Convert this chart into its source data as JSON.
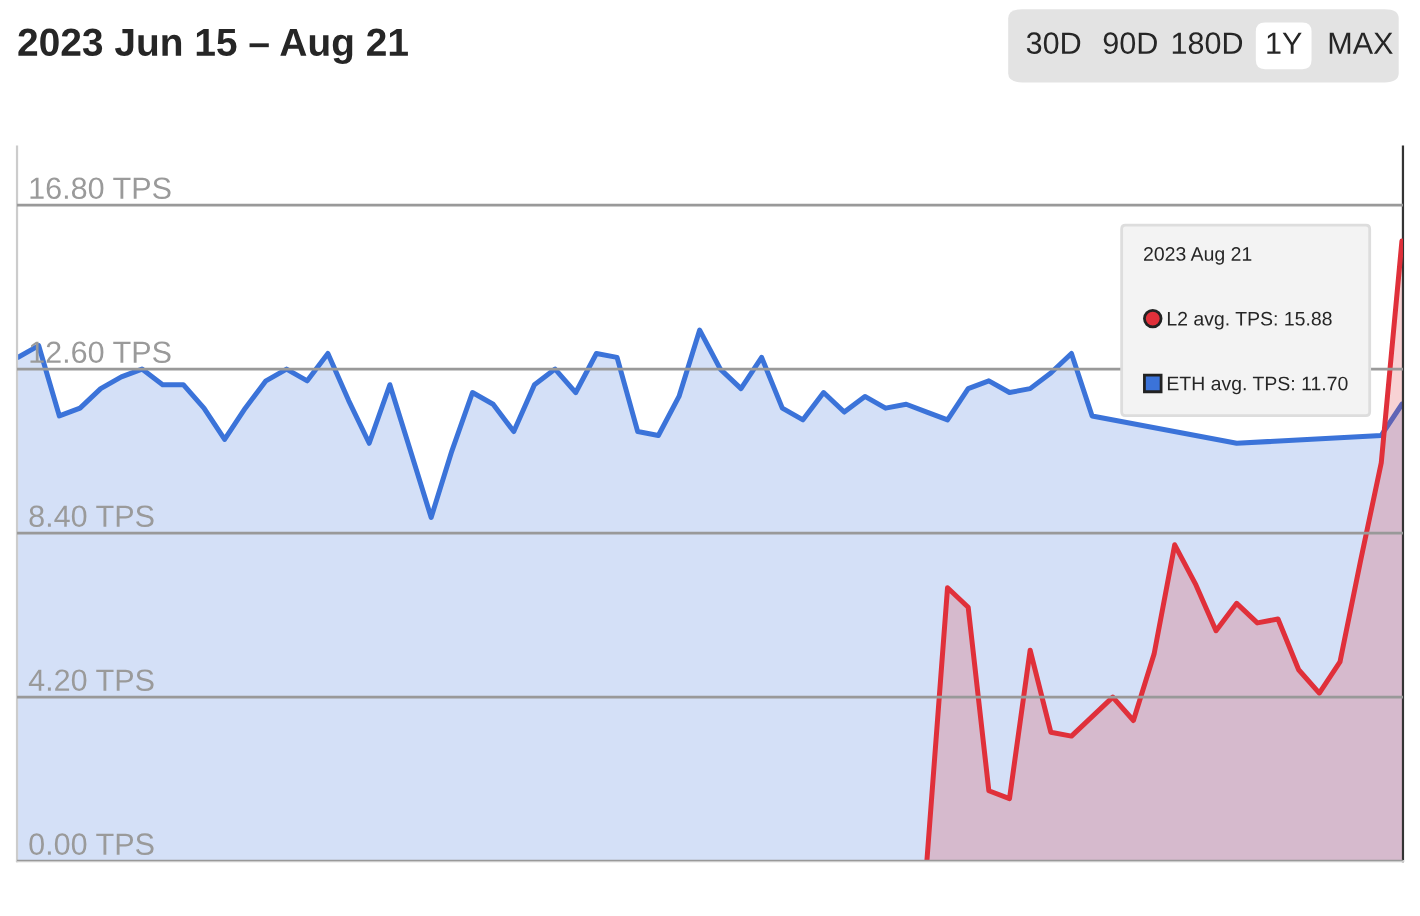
{
  "chart_data": {
    "type": "area",
    "title": "2023 Jun 15 – Aug 21",
    "annotations": [
      "30D",
      "90D",
      "180D",
      "1Y",
      "MAX"
    ],
    "legend_title": "2023 Aug 21",
    "categories": [
      null,
      null,
      null,
      null,
      null,
      null,
      null,
      null,
      null,
      null,
      null,
      null,
      null,
      null,
      null,
      null,
      null,
      null,
      null,
      null,
      null,
      null,
      null,
      null,
      null,
      null,
      null,
      null,
      null,
      null,
      null,
      null,
      null,
      null,
      null,
      null,
      null,
      null,
      null,
      null,
      null,
      null,
      null,
      null,
      null,
      null,
      null,
      null,
      null,
      null,
      null,
      null,
      null,
      null,
      null,
      null,
      null,
      null,
      null,
      null,
      null,
      null,
      null,
      null,
      null,
      null,
      null,
      null
    ],
    "series": [
      {
        "name": "L2 avg. TPS: 15.88",
        "color": "#e0303a",
        "values": [
          null,
          null,
          null,
          null,
          null,
          null,
          null,
          null,
          null,
          null,
          null,
          null,
          null,
          null,
          null,
          null,
          null,
          null,
          null,
          null,
          null,
          null,
          null,
          null,
          null,
          null,
          null,
          null,
          null,
          null,
          null,
          null,
          null,
          null,
          null,
          null,
          null,
          null,
          null,
          null,
          null,
          null,
          null,
          null,
          0.0,
          7.0,
          6.5,
          1.8,
          1.6,
          5.4,
          3.3,
          3.2,
          3.7,
          4.2,
          3.6,
          5.3,
          8.1,
          7.1,
          5.9,
          6.6,
          6.1,
          6.2,
          4.9,
          4.3,
          5.1,
          7.7,
          10.2,
          15.88
        ]
      },
      {
        "name": "ETH avg. TPS: 11.70",
        "color": "#3b73d9",
        "values": [
          12.9,
          13.2,
          11.4,
          11.6,
          12.1,
          12.4,
          12.6,
          12.2,
          12.2,
          11.6,
          10.8,
          11.6,
          12.3,
          12.6,
          12.3,
          13.0,
          11.8,
          10.7,
          12.2,
          10.5,
          8.8,
          10.5,
          12.0,
          11.7,
          11.0,
          12.2,
          12.6,
          12.0,
          13.0,
          12.9,
          11.0,
          10.9,
          11.9,
          13.6,
          12.6,
          12.1,
          12.9,
          11.6,
          11.3,
          12.0,
          11.5,
          11.9,
          11.6,
          11.7,
          11.5,
          11.3,
          12.1,
          12.3,
          12.0,
          12.1,
          12.5,
          13.0,
          11.4,
          null,
          null,
          null,
          null,
          null,
          null,
          10.7,
          null,
          null,
          null,
          null,
          null,
          null,
          10.9,
          11.7
        ]
      }
    ],
    "ylim": [
      0,
      18.3
    ],
    "yticks": [
      {
        "value": 0,
        "label": "0.00 TPS"
      },
      {
        "value": 4.2,
        "label": "4.20 TPS"
      },
      {
        "value": 8.4,
        "label": "8.40 TPS"
      },
      {
        "value": 12.6,
        "label": "12.60 TPS"
      },
      {
        "value": 16.8,
        "label": "16.80 TPS"
      }
    ],
    "grid": "y",
    "legend": "top right"
  }
}
